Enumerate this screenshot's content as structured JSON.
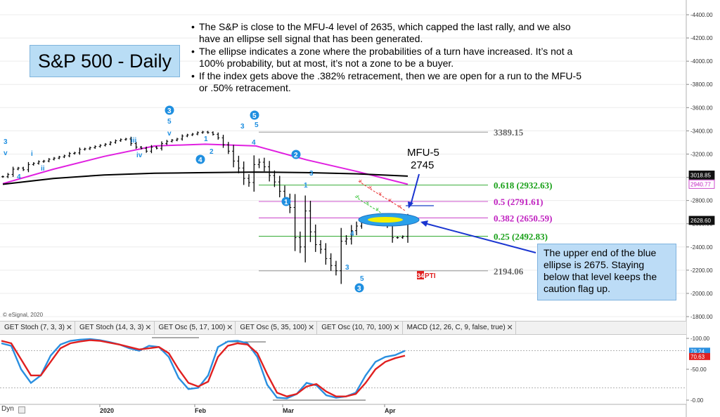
{
  "title": "S&P 500 - Daily",
  "notes": [
    "The S&P is close to the MFU-4 level of 2635, which capped the last rally, and we also have an ellipse sell signal that has been generated.",
    "The ellipse indicates a zone where the probabilities of a turn have increased. It’s not a 100% probability, but at most, it’s not a zone to be a buyer.",
    "If the index gets above the .382% retracement, then we are open for a run to the MFU-5 or .50% retracement."
  ],
  "callout": "The upper end of the blue ellipse is 2675.  Staying below that level keeps the caution flag up.",
  "copyright": "© eSignal, 2020",
  "dyn_label": "Dyn",
  "indicator_tabs": [
    "GET Stoch (7, 3, 3)",
    "GET Stoch (14, 3, 3)",
    "GET Osc (5, 17, 100)",
    "GET Osc (5, 35, 100)",
    "GET Osc (10, 70, 100)",
    "MACD (12, 26, C, 9, false, true)"
  ],
  "tab_close_glyph": "✕",
  "colors": {
    "price_bars": "#000000",
    "magenta_avg": "#e020e0",
    "black_avg": "#000000",
    "wave_labels": "#1f8fe0",
    "fib_green": "#18a018",
    "fib_magenta": "#c020c0",
    "fib_gray": "#888888",
    "ellipse_fill": "#2aa0ea",
    "ellipse_inner": "#f5f000",
    "arrow_blue": "#1a35d0",
    "stoch_blue": "#2a8fe0",
    "stoch_red": "#e02020",
    "pti_red": "#e02020"
  },
  "chart_data": {
    "type": "candlestick",
    "title": "S&P 500 - Daily",
    "x_labels": [
      "2020",
      "Feb",
      "Mar",
      "Apr"
    ],
    "price_axis": {
      "ylim": [
        1800,
        4400
      ],
      "ticks": [
        "4400.00",
        "4200.00",
        "4000.00",
        "3800.00",
        "3600.00",
        "3400.00",
        "3200.00",
        "3000.00",
        "2800.00",
        "2600.00",
        "2400.00",
        "2200.00",
        "2000.00",
        "1800.00"
      ],
      "tick_values": [
        4400,
        4200,
        4000,
        3800,
        3600,
        3400,
        3200,
        3000,
        2800,
        2600,
        2400,
        2200,
        2000,
        1800
      ]
    },
    "price_series": [
      3005,
      3025,
      3070,
      3080,
      3065,
      3110,
      3120,
      3135,
      3140,
      3155,
      3165,
      3175,
      3185,
      3205,
      3210,
      3240,
      3245,
      3255,
      3265,
      3275,
      3285,
      3300,
      3315,
      3325,
      3330,
      3290,
      3260,
      3250,
      3225,
      3260,
      3250,
      3290,
      3310,
      3320,
      3330,
      3355,
      3365,
      3372,
      3385,
      3390,
      3385,
      3370,
      3340,
      3280,
      3225,
      3140,
      3080,
      2990,
      2955,
      3110,
      3130,
      3090,
      3015,
      2960,
      2880,
      2810,
      2740,
      2480,
      2400,
      2710,
      2530,
      2420,
      2380,
      2300,
      2240,
      2195,
      2450,
      2470,
      2540,
      2580,
      2630,
      2610,
      2600,
      2620,
      2650,
      2590,
      2480,
      2480,
      2490,
      2630
    ],
    "moving_averages": [
      {
        "color": "#e020e0",
        "values": [
          2945,
          3070,
          3180,
          3270,
          3285,
          3270,
          3150,
          3050,
          2940
        ]
      },
      {
        "color": "#000000",
        "values": [
          2940,
          2990,
          3020,
          3035,
          3040,
          3045,
          3040,
          3030,
          3010
        ]
      }
    ],
    "fib_levels": [
      {
        "label": "3389.15",
        "value": 3389.15,
        "color": "#888888"
      },
      {
        "label": "0.618 (2932.63)",
        "value": 2932.63,
        "color": "#18a018"
      },
      {
        "label": "0.5 (2791.61)",
        "value": 2791.61,
        "color": "#c020c0"
      },
      {
        "label": "0.382 (2650.59)",
        "value": 2650.59,
        "color": "#c020c0"
      },
      {
        "label": "0.25 (2492.83)",
        "value": 2492.83,
        "color": "#18a018"
      },
      {
        "label": "2194.06",
        "value": 2194.06,
        "color": "#888888"
      }
    ],
    "right_axis_badges": [
      {
        "label": "3018.85",
        "value": 3018.85,
        "style": "black"
      },
      {
        "label": "2940.77",
        "value": 2940.77,
        "style": "magenta"
      },
      {
        "label": "2628.60",
        "value": 2628.6,
        "style": "black"
      }
    ],
    "mfu_annotation": {
      "line1": "MFU-5",
      "line2": "2745",
      "value": 2745
    },
    "ellipse_zone": {
      "center": 2640,
      "upper": 2675
    },
    "wave_labels": {
      "plain": [
        "3",
        "v",
        "4",
        "i",
        "ii",
        "iii",
        "iv",
        "v",
        "5",
        "1",
        "2",
        "3",
        "4",
        "5",
        "1",
        "3",
        "4",
        "3",
        "5"
      ],
      "circled": [
        "3",
        "4",
        "5",
        "2",
        "1",
        "3"
      ]
    },
    "pti_label": {
      "number": "34",
      "text": "PTI"
    },
    "oscillator": {
      "ylim": [
        0,
        100
      ],
      "ticks": [
        "100.00",
        "50.00",
        "0.00"
      ],
      "tick_values": [
        100,
        50,
        0
      ],
      "badges": [
        {
          "label": "79.24",
          "value": 79.24,
          "color": "#2a8fe0"
        },
        {
          "label": "70.63",
          "value": 70.63,
          "color": "#e02020"
        }
      ],
      "series": [
        {
          "color": "#2a8fe0",
          "values": [
            92,
            88,
            50,
            28,
            40,
            72,
            90,
            96,
            98,
            99,
            97,
            94,
            90,
            84,
            80,
            88,
            86,
            70,
            36,
            18,
            20,
            40,
            86,
            95,
            96,
            92,
            70,
            25,
            4,
            3,
            10,
            28,
            24,
            8,
            4,
            6,
            12,
            40,
            62,
            70,
            73,
            80
          ]
        },
        {
          "color": "#e02020",
          "values": [
            96,
            92,
            66,
            40,
            40,
            62,
            84,
            92,
            95,
            97,
            96,
            93,
            90,
            86,
            82,
            84,
            86,
            76,
            50,
            28,
            22,
            30,
            70,
            88,
            92,
            90,
            76,
            42,
            12,
            6,
            10,
            22,
            26,
            14,
            6,
            6,
            10,
            28,
            50,
            62,
            68,
            72
          ]
        }
      ]
    }
  }
}
